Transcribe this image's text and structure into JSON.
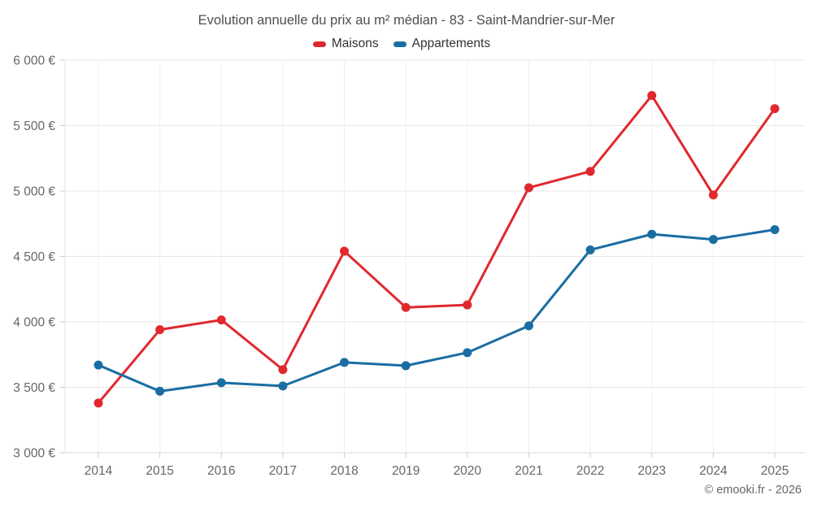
{
  "title": "Evolution annuelle du prix au m² médian - 83 - Saint-Mandrier-sur-Mer",
  "legend": {
    "items": [
      {
        "label": "Maisons",
        "color": "#e0282e"
      },
      {
        "label": "Appartements",
        "color": "#1a6da2"
      }
    ]
  },
  "footer": {
    "credit": "© emooki.fr - 2026"
  },
  "chart_data": {
    "type": "line",
    "title": "Evolution annuelle du prix au m² médian - 83 - Saint-Mandrier-sur-Mer",
    "x": [
      2014,
      2015,
      2016,
      2017,
      2018,
      2019,
      2020,
      2021,
      2022,
      2023,
      2024,
      2025
    ],
    "x_labels": [
      "2014",
      "2015",
      "2016",
      "2017",
      "2018",
      "2019",
      "2020",
      "2021",
      "2022",
      "2023",
      "2024",
      "2025"
    ],
    "series": [
      {
        "name": "Maisons",
        "color": "#e0282e",
        "values": [
          3380,
          3940,
          4015,
          3635,
          4540,
          4110,
          4130,
          5025,
          5150,
          5730,
          4970,
          5630
        ]
      },
      {
        "name": "Appartements",
        "color": "#1a6da2",
        "values": [
          3670,
          3470,
          3535,
          3510,
          3690,
          3665,
          3765,
          3970,
          4550,
          4670,
          4630,
          4705
        ]
      }
    ],
    "ylim": [
      3000,
      6000
    ],
    "yticks": {
      "values": [
        3000,
        3500,
        4000,
        4500,
        5000,
        5500,
        6000
      ],
      "labels": [
        "3 000 €",
        "3 500 €",
        "4 000 €",
        "4 500 €",
        "5 000 €",
        "5 500 €",
        "6 000 €"
      ]
    },
    "currency": "€",
    "grid": true,
    "legend_position": "top",
    "marker": "circle"
  }
}
